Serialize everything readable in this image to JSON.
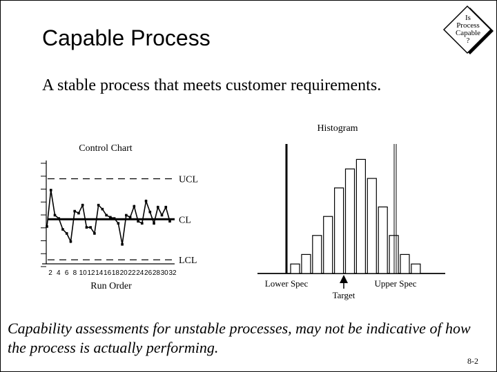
{
  "slide": {
    "title": "Capable Process",
    "subtitle": "A stable process that meets customer requirements.",
    "caption": "Capability assessments for unstable processes, may not be indicative of how the process is actually performing.",
    "page_number": "8-2"
  },
  "badge": {
    "lines": [
      "Is",
      "Process",
      "Capable",
      "?"
    ]
  },
  "control_chart": {
    "title": "Control Chart",
    "ucl_label": "UCL",
    "cl_label": "CL",
    "lcl_label": "LCL",
    "xlabel": "Run Order",
    "x_ticks": [
      "2",
      "4",
      "6",
      "8",
      "10",
      "12",
      "14",
      "16",
      "18",
      "20",
      "22",
      "24",
      "26",
      "28",
      "30",
      "32"
    ]
  },
  "histogram": {
    "title": "Histogram",
    "lower_spec_label": "Lower Spec",
    "upper_spec_label": "Upper Spec",
    "target_label": "Target"
  },
  "chart_data": [
    {
      "type": "line",
      "title": "Control Chart",
      "xlabel": "Run Order",
      "ylabel": "",
      "x": [
        1,
        2,
        3,
        4,
        5,
        6,
        7,
        8,
        9,
        10,
        11,
        12,
        13,
        14,
        15,
        16,
        17,
        18,
        19,
        20,
        21,
        22,
        23,
        24,
        25,
        26,
        27,
        28,
        29,
        30,
        31,
        32
      ],
      "values": [
        -0.18,
        0.72,
        0.1,
        0.02,
        -0.25,
        -0.35,
        -0.55,
        0.2,
        0.15,
        0.35,
        -0.2,
        -0.2,
        -0.35,
        0.35,
        0.25,
        0.1,
        0.05,
        0.02,
        -0.1,
        -0.62,
        0.1,
        0.05,
        0.32,
        -0.05,
        -0.1,
        0.45,
        0.18,
        -0.1,
        0.3,
        0.1,
        0.3,
        -0.05
      ],
      "ucl": 1.0,
      "cl": 0.0,
      "lcl": -1.0,
      "ylim": [
        -1.1,
        1.45
      ]
    },
    {
      "type": "bar",
      "title": "Histogram",
      "bins": 12,
      "values": [
        1,
        2,
        4,
        6,
        9,
        11,
        12,
        10,
        7,
        4,
        2,
        1
      ],
      "lower_spec_bin": 0,
      "upper_spec_bin": 12.6,
      "target_bin": 6
    }
  ]
}
